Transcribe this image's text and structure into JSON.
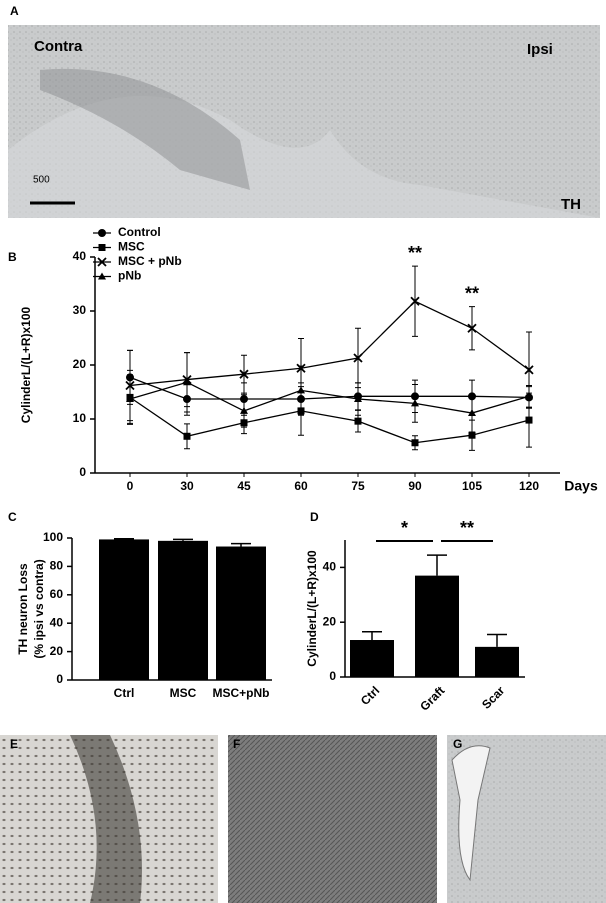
{
  "panels": {
    "a": {
      "label": "A",
      "contra": "Contra",
      "ipsi": "Ipsi",
      "scale": "500",
      "stain": "TH"
    },
    "e": "E",
    "f": "F",
    "g": "G"
  },
  "chart_data": [
    {
      "type": "line",
      "label": "B",
      "ylabel": "CylinderL/(L+R)x100",
      "xlabel": "Days",
      "categories": [
        "0",
        "30",
        "45",
        "60",
        "75",
        "90",
        "105",
        "120"
      ],
      "ylim": [
        0,
        40
      ],
      "yticks": [
        0,
        10,
        20,
        30,
        40
      ],
      "series": [
        {
          "name": "Control",
          "color": "#000000",
          "marker": "circle",
          "values": [
            17.7,
            13.7,
            13.7,
            13.7,
            14.2,
            14.2,
            14.2,
            14.0
          ],
          "errors": [
            5,
            3,
            3,
            3,
            2.5,
            3,
            3,
            2
          ]
        },
        {
          "name": "MSC",
          "color": "#000000",
          "marker": "square",
          "values": [
            14.0,
            6.8,
            9.3,
            11.5,
            9.6,
            5.6,
            7.0,
            9.8
          ],
          "errors": [
            5,
            2.3,
            2,
            4.5,
            2,
            1.3,
            2.8,
            5
          ]
        },
        {
          "name": "MSC + pNb",
          "color": "#000000",
          "marker": "x",
          "values": [
            16.2,
            17.3,
            18.3,
            19.4,
            21.3,
            31.8,
            26.8,
            19.1
          ],
          "errors": [
            6.5,
            5,
            3.5,
            5.5,
            5.5,
            6.5,
            4,
            7
          ]
        },
        {
          "name": "pNb",
          "color": "#000000",
          "marker": "triangle",
          "values": [
            13.7,
            16.8,
            11.5,
            15.3,
            13.7,
            12.9,
            11.1,
            14.2
          ],
          "errors": [
            4.5,
            5.5,
            3,
            4.5,
            3,
            3.5,
            3.5,
            2
          ]
        }
      ],
      "annotations": [
        {
          "category": 5,
          "text": "**"
        },
        {
          "category": 6,
          "text": "**"
        }
      ]
    },
    {
      "type": "bar",
      "label": "C",
      "ylabel": [
        "TH neuron Loss",
        "(% ipsi vs contra)"
      ],
      "categories": [
        "Ctrl",
        "MSC",
        "MSC+pNb"
      ],
      "values": [
        99,
        98,
        94
      ],
      "errors": [
        0.5,
        1,
        2
      ],
      "color": "#000000",
      "ylim": [
        0,
        100
      ],
      "yticks": [
        0,
        20,
        40,
        60,
        80,
        100
      ]
    },
    {
      "type": "bar",
      "label": "D",
      "ylabel": "CylinderL/(L+R)x100",
      "categories": [
        "Ctrl",
        "Graft",
        "Scar"
      ],
      "values": [
        13.5,
        37,
        11
      ],
      "errors": [
        3,
        7.5,
        4.5
      ],
      "color": "#000000",
      "ylim": [
        0,
        50
      ],
      "yticks": [
        0,
        20,
        40
      ],
      "annotations": [
        {
          "from": 0,
          "to": 1,
          "text": "*"
        },
        {
          "from": 1,
          "to": 2,
          "text": "**"
        }
      ]
    }
  ]
}
